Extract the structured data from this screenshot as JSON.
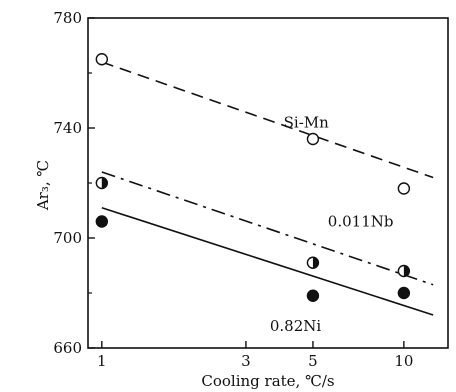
{
  "chart_data": {
    "type": "scatter",
    "title": "",
    "xlabel": "Cooling rate, ℃/s",
    "ylabel": "Ar₃, ℃",
    "x_scale": "log",
    "xlim": [
      0.9,
      14
    ],
    "ylim": [
      660,
      780
    ],
    "x_ticks": [
      1,
      3,
      5,
      10
    ],
    "y_ticks": [
      660,
      700,
      740,
      780
    ],
    "grid": false,
    "legend": "none (series labeled inline)",
    "series": [
      {
        "name": "Si-Mn",
        "marker": "open-circle",
        "line_style": "dashed",
        "points": [
          {
            "x": 1,
            "y": 765
          },
          {
            "x": 5,
            "y": 736
          },
          {
            "x": 10,
            "y": 718
          }
        ],
        "fit_line": [
          {
            "x": 1,
            "y": 764
          },
          {
            "x": 12.5,
            "y": 722
          }
        ]
      },
      {
        "name": "0.011Nb",
        "marker": "half-filled-circle",
        "line_style": "dash-dot",
        "points": [
          {
            "x": 1,
            "y": 720
          },
          {
            "x": 5,
            "y": 691
          },
          {
            "x": 10,
            "y": 688
          }
        ],
        "fit_line": [
          {
            "x": 1,
            "y": 724
          },
          {
            "x": 12.5,
            "y": 683
          }
        ]
      },
      {
        "name": "0.82Ni",
        "marker": "filled-circle",
        "line_style": "solid",
        "points": [
          {
            "x": 1,
            "y": 706
          },
          {
            "x": 5,
            "y": 679
          },
          {
            "x": 10,
            "y": 680
          }
        ],
        "fit_line": [
          {
            "x": 1,
            "y": 711
          },
          {
            "x": 12.5,
            "y": 672
          }
        ]
      }
    ]
  }
}
